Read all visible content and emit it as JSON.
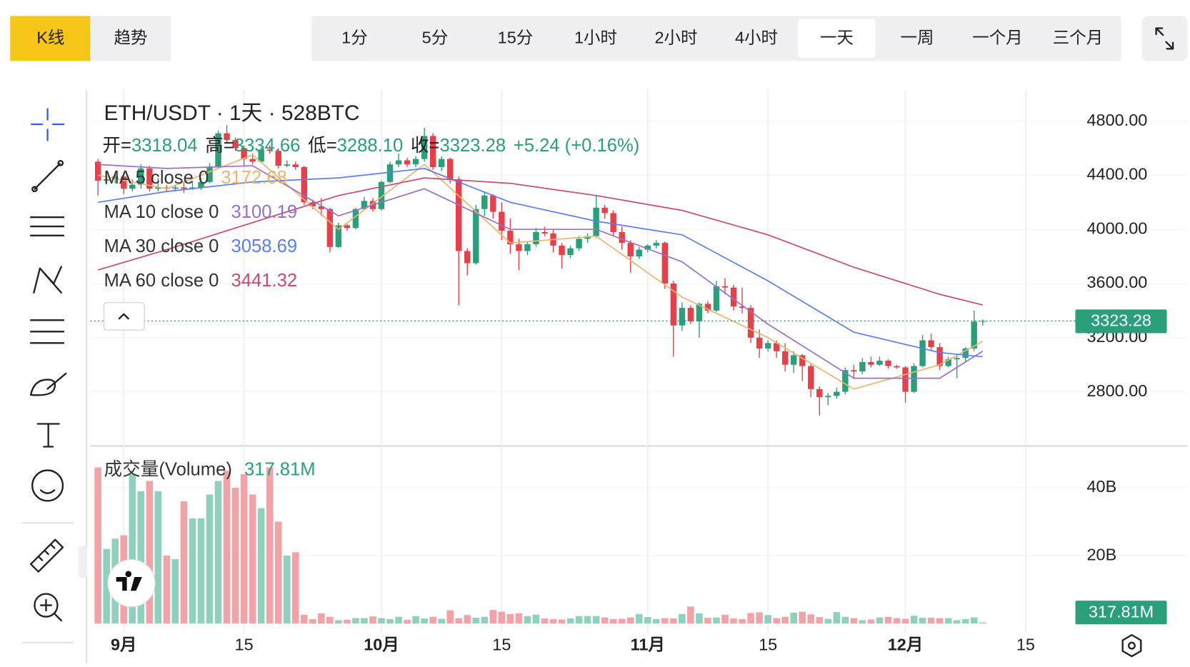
{
  "toolbar": {
    "tabs": [
      "K线",
      "趋势"
    ],
    "intervals": [
      "1分",
      "5分",
      "15分",
      "1小时",
      "2小时",
      "4小时",
      "一天",
      "一周",
      "一个月",
      "三个月"
    ],
    "active_interval": 6
  },
  "chart_data": [
    {
      "type": "candlestick",
      "title": "ETH/USDT · 1天 · 528BTC",
      "readout": [
        "开=",
        "3318.04",
        "高=",
        "3334.66",
        "低=",
        "3288.10",
        "收=",
        "3323.28",
        "+5.24 (+0.16%)"
      ],
      "up_color": "#2b9e7c",
      "down_color": "#e5414b",
      "x": [
        -3,
        -2,
        -1,
        0,
        1,
        2,
        3,
        4,
        5,
        6,
        7,
        8,
        9,
        10,
        11,
        12,
        13,
        14,
        15,
        16,
        17,
        18,
        19,
        20,
        21,
        22,
        23,
        24,
        25,
        26,
        27,
        28,
        29,
        30,
        31,
        32,
        33,
        34,
        35,
        36,
        37,
        38,
        39,
        40,
        41,
        42,
        43,
        44,
        45,
        46,
        47,
        48,
        49,
        50,
        51,
        52,
        53,
        54,
        55,
        56,
        57,
        58,
        59,
        60,
        61,
        62,
        63,
        64,
        65,
        66,
        67,
        68,
        69,
        70,
        71,
        72,
        73,
        74,
        75,
        76,
        77,
        78,
        79,
        80,
        81,
        82,
        83,
        84,
        85,
        86,
        87,
        88,
        89,
        90,
        91,
        92,
        93,
        94,
        95,
        96,
        97,
        98,
        99,
        100
      ],
      "open": [
        4500,
        4360,
        4370,
        4390,
        4300,
        4330,
        4450,
        4300,
        4310,
        4300,
        4310,
        4300,
        4310,
        4350,
        4460,
        4710,
        4660,
        4600,
        4520,
        4500,
        4590,
        4580,
        4470,
        4480,
        4460,
        4200,
        4170,
        4150,
        3870,
        4030,
        4010,
        4150,
        4210,
        4150,
        4350,
        4480,
        4510,
        4480,
        4520,
        4690,
        4460,
        4520,
        4370,
        3840,
        3750,
        4150,
        4250,
        4130,
        3990,
        3890,
        3840,
        3890,
        3980,
        3970,
        3880,
        3810,
        3860,
        3930,
        3950,
        4160,
        4120,
        3980,
        3900,
        3800,
        3850,
        3880,
        3900,
        3600,
        3290,
        3420,
        3320,
        3450,
        3400,
        3580,
        3570,
        3430,
        3420,
        3200,
        3120,
        3160,
        3100,
        3000,
        3070,
        2990,
        2820,
        2760,
        2770,
        2800,
        2960,
        2950,
        3020,
        3000,
        3030,
        2990,
        2980,
        2800,
        2990,
        3180,
        3130,
        2990,
        3040,
        3050,
        3120,
        3318.04
      ],
      "high": [
        4520,
        4420,
        4420,
        4410,
        4370,
        4480,
        4470,
        4380,
        4330,
        4330,
        4350,
        4360,
        4380,
        4490,
        4730,
        4770,
        4680,
        4620,
        4560,
        4610,
        4620,
        4600,
        4510,
        4500,
        4470,
        4220,
        4230,
        4160,
        4050,
        4040,
        4160,
        4240,
        4230,
        4360,
        4500,
        4560,
        4530,
        4540,
        4750,
        4710,
        4540,
        4530,
        4390,
        3860,
        4180,
        4280,
        4260,
        4200,
        4080,
        3930,
        3910,
        4010,
        4020,
        4000,
        3900,
        3880,
        3950,
        3970,
        4250,
        4180,
        4140,
        4020,
        3920,
        3870,
        3890,
        3920,
        3910,
        3620,
        3460,
        3440,
        3460,
        3470,
        3620,
        3640,
        3590,
        3570,
        3440,
        3260,
        3180,
        3180,
        3160,
        3100,
        3080,
        3010,
        2840,
        2790,
        2830,
        2980,
        3000,
        3050,
        3060,
        3060,
        3040,
        3000,
        2990,
        3010,
        3220,
        3230,
        3160,
        3060,
        3070,
        3130,
        3400,
        3334.66
      ],
      "low": [
        4250,
        4330,
        4340,
        4260,
        4280,
        4300,
        4280,
        4280,
        4280,
        4280,
        4270,
        4290,
        4290,
        4340,
        4450,
        4640,
        4580,
        4470,
        4480,
        4490,
        4560,
        4450,
        4460,
        4440,
        4180,
        4150,
        4100,
        3830,
        3860,
        3990,
        4000,
        4140,
        4130,
        4140,
        4340,
        4460,
        4460,
        4460,
        4500,
        4440,
        4430,
        4340,
        3440,
        3660,
        3740,
        4100,
        4080,
        3920,
        3820,
        3700,
        3810,
        3870,
        3950,
        3830,
        3710,
        3790,
        3840,
        3900,
        3940,
        4080,
        3950,
        3850,
        3680,
        3780,
        3830,
        3860,
        3560,
        3060,
        3250,
        3300,
        3200,
        3380,
        3390,
        3520,
        3400,
        3380,
        3160,
        3050,
        3100,
        3050,
        2950,
        2940,
        2880,
        2760,
        2625,
        2700,
        2750,
        2780,
        2900,
        2930,
        2980,
        2990,
        2970,
        2970,
        2720,
        2790,
        2980,
        3100,
        2960,
        2980,
        2900,
        3020,
        3100,
        3288.1
      ],
      "close": [
        4360,
        4370,
        4390,
        4300,
        4330,
        4450,
        4300,
        4310,
        4300,
        4310,
        4300,
        4310,
        4350,
        4460,
        4710,
        4660,
        4600,
        4520,
        4500,
        4590,
        4580,
        4470,
        4480,
        4460,
        4200,
        4170,
        4150,
        3870,
        4030,
        4010,
        4150,
        4210,
        4150,
        4350,
        4480,
        4510,
        4480,
        4520,
        4690,
        4460,
        4520,
        4370,
        3840,
        3750,
        4150,
        4250,
        4130,
        3990,
        3890,
        3840,
        3890,
        3980,
        3970,
        3880,
        3810,
        3860,
        3930,
        3950,
        4160,
        4120,
        3980,
        3900,
        3800,
        3850,
        3880,
        3900,
        3600,
        3290,
        3420,
        3320,
        3450,
        3400,
        3580,
        3570,
        3430,
        3420,
        3200,
        3120,
        3160,
        3100,
        3000,
        3070,
        2990,
        2820,
        2760,
        2770,
        2800,
        2960,
        2950,
        3020,
        3000,
        3030,
        2990,
        2980,
        2800,
        2990,
        3180,
        3130,
        2990,
        3040,
        3050,
        3120,
        3318.04,
        3323.28
      ],
      "series": [
        {
          "name": "MA 5 close 0",
          "color": "#eab56f",
          "x": [
            -3,
            5,
            15,
            25,
            35,
            45,
            55,
            65,
            75,
            85,
            95,
            100
          ],
          "values": [
            4400,
            4300,
            4550,
            4000,
            4480,
            3900,
            3950,
            3500,
            3200,
            2820,
            3000,
            3172.68
          ]
        },
        {
          "name": "MA 10 close 0",
          "color": "#9a70c8",
          "x": [
            -3,
            5,
            15,
            25,
            35,
            45,
            55,
            65,
            75,
            85,
            95,
            100
          ],
          "values": [
            4480,
            4450,
            4470,
            4100,
            4300,
            4000,
            4000,
            3760,
            3300,
            2900,
            2900,
            3100.19
          ]
        },
        {
          "name": "MA 30 close 0",
          "color": "#5a7ff0",
          "x": [
            -3,
            5,
            15,
            25,
            35,
            45,
            55,
            65,
            75,
            85,
            95,
            100
          ],
          "values": [
            4200,
            4280,
            4350,
            4380,
            4450,
            4200,
            4060,
            3960,
            3620,
            3240,
            3090,
            3058.69
          ]
        },
        {
          "name": "MA 60 close 0",
          "color": "#c94b70",
          "x": [
            -3,
            5,
            15,
            25,
            35,
            45,
            55,
            65,
            75,
            85,
            95,
            100
          ],
          "values": [
            3700,
            3850,
            4050,
            4250,
            4380,
            4340,
            4250,
            4140,
            3960,
            3720,
            3520,
            3441.32
          ]
        }
      ],
      "xlim": [
        -3.9,
        109.9
      ],
      "xticks": [
        {
          "value": 0,
          "label": "9月"
        },
        {
          "value": 14,
          "label": "15"
        },
        {
          "value": 30,
          "label": "10月"
        },
        {
          "value": 44,
          "label": "15"
        },
        {
          "value": 61,
          "label": "11月"
        },
        {
          "value": 75,
          "label": "15"
        },
        {
          "value": 91,
          "label": "12月"
        },
        {
          "value": 105,
          "label": "15"
        }
      ],
      "ylim": [
        2400,
        5030
      ],
      "yticks": [
        {
          "value": 2800,
          "label": "2800.00"
        },
        {
          "value": 3200,
          "label": "3200.00"
        },
        {
          "value": 3600,
          "label": "3600.00"
        },
        {
          "value": 4000,
          "label": "4000.00"
        },
        {
          "value": 4400,
          "label": "4400.00"
        },
        {
          "value": 4800,
          "label": "4800.00"
        }
      ],
      "grid": true,
      "last_price_line": true
    },
    {
      "type": "bar",
      "title": "成交量(Volume)",
      "value_label": "317.81M",
      "up_color": "#8fd1be",
      "down_color": "#f2a3a8",
      "x": [
        -3,
        -2,
        -1,
        0,
        1,
        2,
        3,
        4,
        5,
        6,
        7,
        8,
        9,
        10,
        11,
        12,
        13,
        14,
        15,
        16,
        17,
        18,
        19,
        20,
        21,
        22,
        23,
        24,
        25,
        26,
        27,
        28,
        29,
        30,
        31,
        32,
        33,
        34,
        35,
        36,
        37,
        38,
        39,
        40,
        41,
        42,
        43,
        44,
        45,
        46,
        47,
        48,
        49,
        50,
        51,
        52,
        53,
        54,
        55,
        56,
        57,
        58,
        59,
        60,
        61,
        62,
        63,
        64,
        65,
        66,
        67,
        68,
        69,
        70,
        71,
        72,
        73,
        74,
        75,
        76,
        77,
        78,
        79,
        80,
        81,
        82,
        83,
        84,
        85,
        86,
        87,
        88,
        89,
        90,
        91,
        92,
        93,
        94,
        95,
        96,
        97,
        98,
        99,
        100
      ],
      "values": [
        46,
        22,
        25,
        26,
        44,
        39,
        42,
        39,
        20,
        19,
        36,
        31,
        31,
        38,
        42,
        45,
        40,
        44,
        38,
        34,
        46,
        30,
        20,
        21,
        2.6,
        1.3,
        3.0,
        2.0,
        1.0,
        1.1,
        1.6,
        1.6,
        2.1,
        1.6,
        1.3,
        2.0,
        1.1,
        2.2,
        1.5,
        2.0,
        1.4,
        3.9,
        1.6,
        2.5,
        1.7,
        2.0,
        4.0,
        3.5,
        2.8,
        3.0,
        2.2,
        2.6,
        1.5,
        1.3,
        1.2,
        1.5,
        2.2,
        2.2,
        2.2,
        1.8,
        1.3,
        1.4,
        1.8,
        2.8,
        1.9,
        1.3,
        1.6,
        1.5,
        2.8,
        5.0,
        3.0,
        1.7,
        1.8,
        2.6,
        1.5,
        1.3,
        3.1,
        3.3,
        2.5,
        1.6,
        2.0,
        3.2,
        3.5,
        2.7,
        1.9,
        1.4,
        3.4,
        2.0,
        1.6,
        1.0,
        1.2,
        1.8,
        2.0,
        1.6,
        1.4,
        2.3,
        1.7,
        1.7,
        1.6,
        1.6,
        1.0,
        1.3,
        1.8,
        0.31781
      ],
      "xlim": [
        -3.9,
        109.9
      ],
      "ylim": [
        0,
        51.2
      ],
      "yticks": [
        {
          "value": 20,
          "label": "20B"
        },
        {
          "value": 40,
          "label": "40B"
        }
      ],
      "grid": true
    }
  ]
}
